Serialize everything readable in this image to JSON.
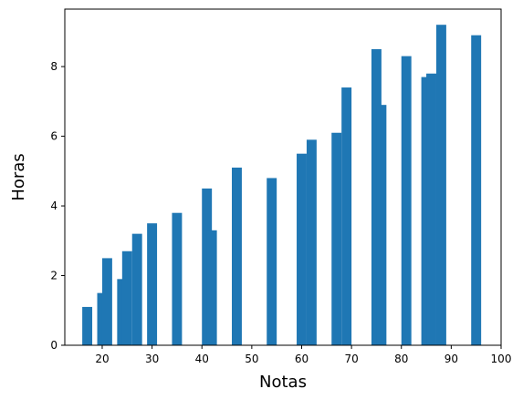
{
  "chart_data": {
    "type": "bar",
    "title": "",
    "xlabel": "Notas",
    "ylabel": "Horas",
    "xlim": [
      12.5,
      100
    ],
    "ylim": [
      0,
      9.65
    ],
    "bar_width": 2,
    "x_ticks": [
      20,
      30,
      40,
      50,
      60,
      70,
      80,
      90,
      100
    ],
    "y_ticks": [
      0,
      2,
      4,
      6,
      8
    ],
    "grid": false,
    "bar_color": "#1f77b4",
    "bars": [
      {
        "x": 17,
        "y": 1.1
      },
      {
        "x": 20,
        "y": 1.5
      },
      {
        "x": 21,
        "y": 2.5
      },
      {
        "x": 24,
        "y": 1.9
      },
      {
        "x": 25,
        "y": 2.7
      },
      {
        "x": 27,
        "y": 3.2
      },
      {
        "x": 30,
        "y": 3.5
      },
      {
        "x": 35,
        "y": 3.8
      },
      {
        "x": 41,
        "y": 4.5
      },
      {
        "x": 42,
        "y": 3.3
      },
      {
        "x": 47,
        "y": 5.1
      },
      {
        "x": 54,
        "y": 4.8
      },
      {
        "x": 60,
        "y": 5.5
      },
      {
        "x": 62,
        "y": 5.9
      },
      {
        "x": 67,
        "y": 6.1
      },
      {
        "x": 69,
        "y": 7.4
      },
      {
        "x": 75,
        "y": 8.5
      },
      {
        "x": 76,
        "y": 6.9
      },
      {
        "x": 81,
        "y": 8.3
      },
      {
        "x": 85,
        "y": 7.7
      },
      {
        "x": 86,
        "y": 7.8
      },
      {
        "x": 88,
        "y": 9.2
      },
      {
        "x": 95,
        "y": 8.9
      }
    ]
  }
}
